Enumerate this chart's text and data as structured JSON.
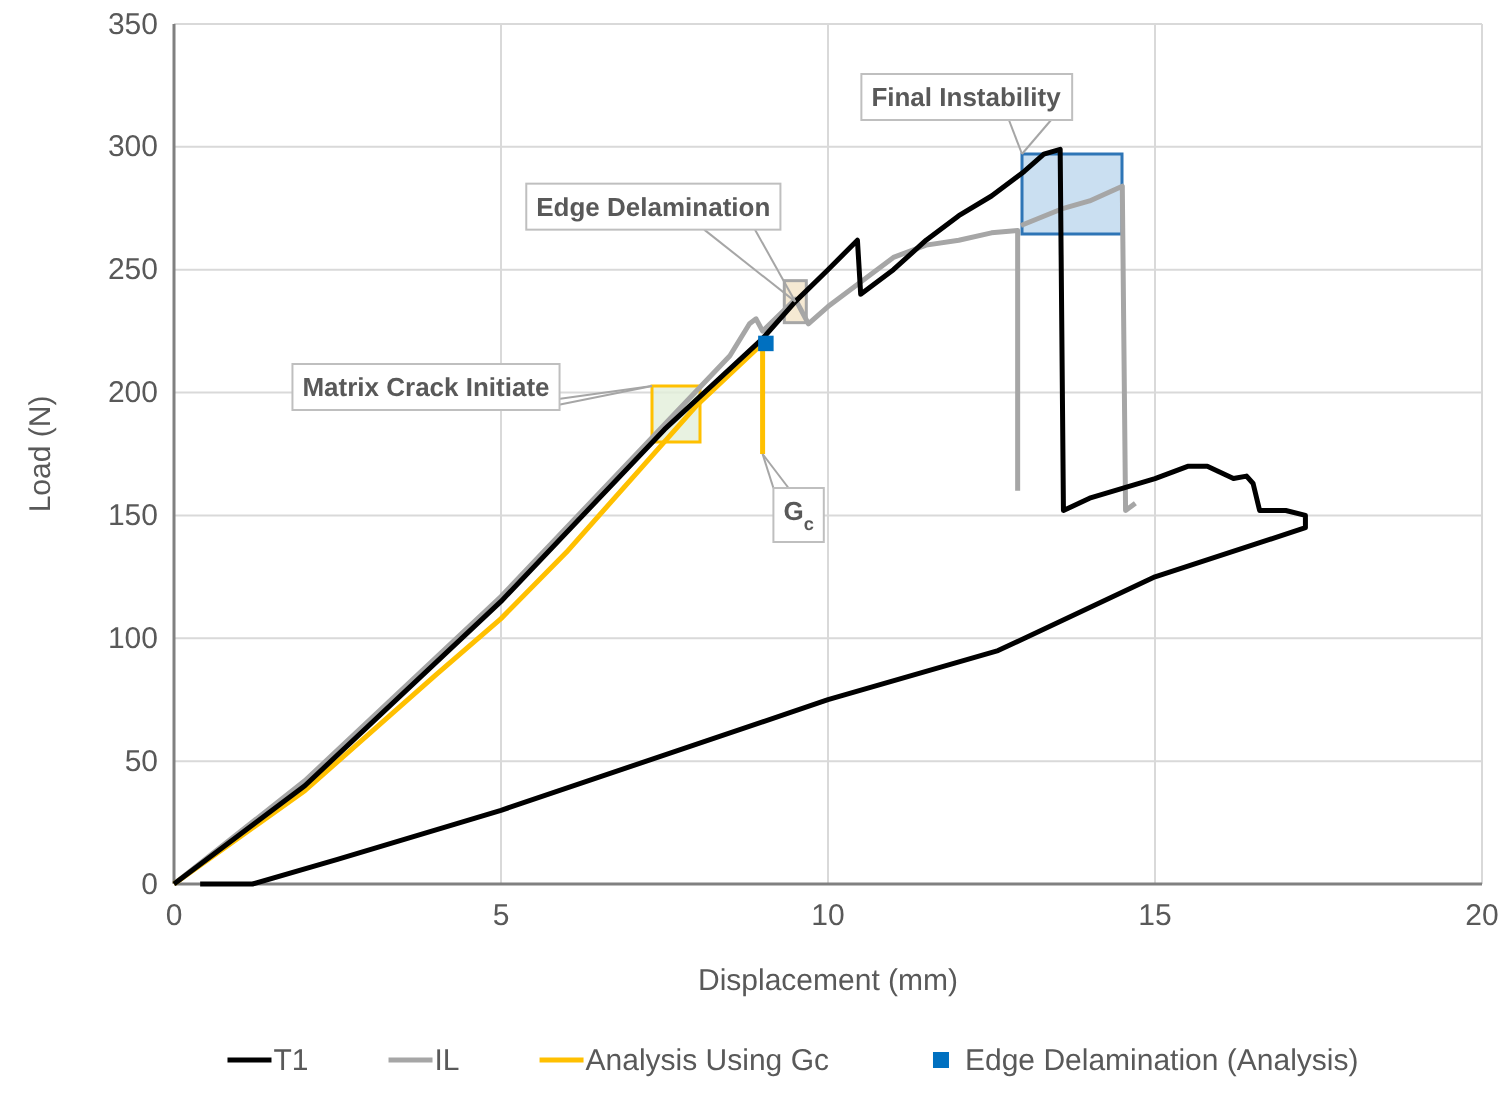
{
  "chart_data": {
    "type": "line",
    "xlabel": "Displacement (mm)",
    "ylabel": "Load (N)",
    "xlim": [
      0,
      20
    ],
    "xticks": [
      0,
      5,
      10,
      15,
      20
    ],
    "ylim": [
      0,
      350
    ],
    "yticks": [
      0,
      50,
      100,
      150,
      200,
      250,
      300,
      350
    ],
    "grid": true,
    "legend": "bottom",
    "series": [
      {
        "name": "T1",
        "color": "#000000",
        "x": [
          0,
          2,
          5,
          7.5,
          9,
          9.5,
          10,
          10.45,
          10.5,
          11,
          11.5,
          12,
          12.5,
          13,
          13.3,
          13.55,
          13.6,
          14,
          15,
          15.5,
          15.8,
          16.2,
          16.4,
          16.5,
          16.6,
          17,
          17.3,
          17.3,
          15,
          12.6,
          10,
          5,
          2.5,
          1.2,
          0.4
        ],
        "values": [
          0,
          40,
          115,
          185,
          222,
          237,
          250,
          262,
          240,
          250,
          262,
          272,
          280,
          290,
          297,
          299,
          152,
          157,
          165,
          170,
          170,
          165,
          166,
          163,
          152,
          152,
          150,
          145,
          125,
          95,
          75,
          30,
          10,
          0,
          0
        ]
      },
      {
        "name": "IL",
        "color": "#a6a6a6",
        "x": [
          0,
          2,
          5,
          7.5,
          8.5,
          8.8,
          8.9,
          9,
          9.5,
          9.7,
          10,
          10.5,
          11,
          11.5,
          12,
          12.5,
          12.9,
          12.9,
          null,
          12.95,
          13.6,
          14,
          14.5,
          14.55,
          14.7
        ],
        "values": [
          0,
          42,
          117,
          187,
          215,
          228,
          230,
          225,
          238,
          228,
          235,
          245,
          255,
          260,
          262,
          265,
          266,
          160,
          null,
          268,
          275,
          278,
          284,
          152,
          155
        ]
      },
      {
        "name": "Analysis Using Gc",
        "color": "#ffc000",
        "x": [
          0,
          2,
          4,
          5,
          6,
          7,
          8,
          8.8,
          9,
          9
        ],
        "values": [
          0,
          38,
          85,
          108,
          135,
          165,
          195,
          215,
          220,
          175
        ]
      },
      {
        "name": "Edge Delamination (Analysis)",
        "type": "scatter",
        "marker": "square",
        "color": "#0070c0",
        "x": [
          9.05
        ],
        "values": [
          220
        ]
      }
    ],
    "annotations": [
      "Matrix Crack Initiate",
      {
        "text": "Edge Delamination",
        "x": 9.5,
        "y": 237
      },
      "Final Instability",
      {
        "text": "G$_{c}$",
        "x": 9,
        "y": 175
      }
    ]
  }
}
